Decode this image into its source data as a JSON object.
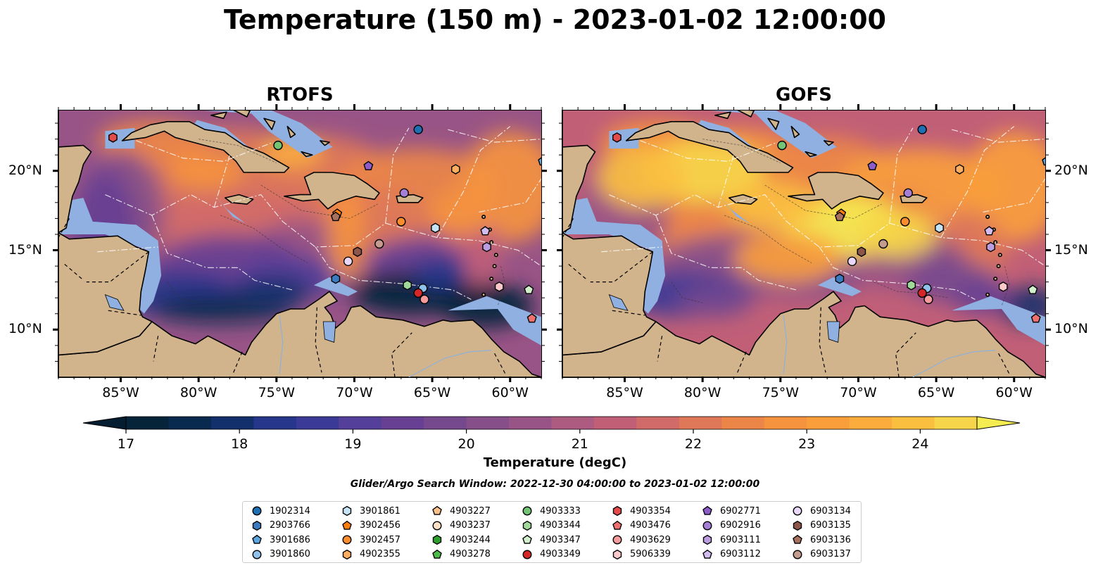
{
  "title": "Temperature (150 m) - 2023-01-02 12:00:00",
  "panels": [
    {
      "title": "RTOFS",
      "warmth": 0
    },
    {
      "title": "GOFS",
      "warmth": 1
    }
  ],
  "x_ticks": [
    "85°W",
    "80°W",
    "75°W",
    "70°W",
    "65°W",
    "60°W"
  ],
  "y_ticks": [
    "20°N",
    "15°N",
    "10°N"
  ],
  "colorbar": {
    "label": "Temperature (degC)",
    "min": 17,
    "max": 24.5,
    "tick_labels": [
      "17",
      "18",
      "19",
      "20",
      "21",
      "22",
      "23",
      "24"
    ],
    "extend": "both",
    "colors": [
      "#05243a",
      "#092a4f",
      "#14306c",
      "#26368a",
      "#3b3a96",
      "#543f9a",
      "#673f93",
      "#76498f",
      "#864f8a",
      "#985486",
      "#ad5b80",
      "#c15f77",
      "#d16b69",
      "#de7858",
      "#eb8548",
      "#f5933f",
      "#fa9e3c",
      "#fbac3d",
      "#fbbf40",
      "#f6d54a"
    ],
    "under_color": "#041d30",
    "over_color": "#f5ec51"
  },
  "search_window": "Glider/Argo Search Window: 2022-12-30 04:00:00 to 2023-01-02 12:00:00",
  "legend": [
    {
      "label": "1902314",
      "color": "#1f6fb4",
      "marker": "circle"
    },
    {
      "label": "2903766",
      "color": "#3b7bc0",
      "marker": "hexagon"
    },
    {
      "label": "3901686",
      "color": "#59a6e1",
      "marker": "pentagon"
    },
    {
      "label": "3901860",
      "color": "#8fc1ea",
      "marker": "circle"
    },
    {
      "label": "3901861",
      "color": "#c5e4f6",
      "marker": "hexagon"
    },
    {
      "label": "3902456",
      "color": "#ff7f0e",
      "marker": "pentagon"
    },
    {
      "label": "3902457",
      "color": "#fd8d2c",
      "marker": "circle"
    },
    {
      "label": "4902355",
      "color": "#fdae61",
      "marker": "hexagon"
    },
    {
      "label": "4903227",
      "color": "#fdc08a",
      "marker": "pentagon"
    },
    {
      "label": "4903237",
      "color": "#fde0c5",
      "marker": "circle"
    },
    {
      "label": "4903244",
      "color": "#2ca02c",
      "marker": "hexagon"
    },
    {
      "label": "4903278",
      "color": "#4cbb47",
      "marker": "pentagon"
    },
    {
      "label": "4903333",
      "color": "#74c476",
      "marker": "circle"
    },
    {
      "label": "4903344",
      "color": "#a1d99b",
      "marker": "hexagon"
    },
    {
      "label": "4903347",
      "color": "#d2f0cc",
      "marker": "pentagon"
    },
    {
      "label": "4903349",
      "color": "#d62728",
      "marker": "circle"
    },
    {
      "label": "4903354",
      "color": "#e34a4a",
      "marker": "hexagon"
    },
    {
      "label": "4903476",
      "color": "#f07070",
      "marker": "pentagon"
    },
    {
      "label": "4903629",
      "color": "#f59b9b",
      "marker": "circle"
    },
    {
      "label": "5906339",
      "color": "#fbc9c9",
      "marker": "hexagon"
    },
    {
      "label": "6902771",
      "color": "#8e5cc8",
      "marker": "pentagon"
    },
    {
      "label": "6902916",
      "color": "#a57ed6",
      "marker": "circle"
    },
    {
      "label": "6903111",
      "color": "#bc9ee0",
      "marker": "hexagon"
    },
    {
      "label": "6903112",
      "color": "#d3bdf0",
      "marker": "pentagon"
    },
    {
      "label": "6903134",
      "color": "#ead8fa",
      "marker": "circle"
    },
    {
      "label": "6903135",
      "color": "#8c564b",
      "marker": "hexagon"
    },
    {
      "label": "6903136",
      "color": "#a8705f",
      "marker": "pentagon"
    },
    {
      "label": "6903137",
      "color": "#c49c8f",
      "marker": "circle"
    }
  ],
  "floats": [
    {
      "id": "4903354",
      "lon": -85.5,
      "lat": 22.1
    },
    {
      "id": "1902314",
      "lon": -65.9,
      "lat": 22.6
    },
    {
      "id": "4903333",
      "lon": -74.9,
      "lat": 21.6
    },
    {
      "id": "6902771",
      "lon": -69.1,
      "lat": 20.3
    },
    {
      "id": "4902355",
      "lon": -63.5,
      "lat": 20.1
    },
    {
      "id": "6902916",
      "lon": -66.8,
      "lat": 18.6
    },
    {
      "id": "3902456",
      "lon": -71.1,
      "lat": 17.3
    },
    {
      "id": "6903136",
      "lon": -71.2,
      "lat": 17.1
    },
    {
      "id": "3902457",
      "lon": -67.0,
      "lat": 16.8
    },
    {
      "id": "3901861",
      "lon": -64.8,
      "lat": 16.4
    },
    {
      "id": "6903112",
      "lon": -61.6,
      "lat": 16.2
    },
    {
      "id": "6903111",
      "lon": -61.5,
      "lat": 15.2
    },
    {
      "id": "6903137",
      "lon": -68.4,
      "lat": 15.4
    },
    {
      "id": "6903135",
      "lon": -69.8,
      "lat": 14.9
    },
    {
      "id": "6903134",
      "lon": -70.4,
      "lat": 14.3
    },
    {
      "id": "2903766",
      "lon": -71.2,
      "lat": 13.2
    },
    {
      "id": "4903344",
      "lon": -66.6,
      "lat": 12.8
    },
    {
      "id": "3901860",
      "lon": -65.6,
      "lat": 12.6
    },
    {
      "id": "4903349",
      "lon": -65.9,
      "lat": 12.3
    },
    {
      "id": "4903629",
      "lon": -65.5,
      "lat": 11.9
    },
    {
      "id": "5906339",
      "lon": -60.7,
      "lat": 12.7
    },
    {
      "id": "4903347",
      "lon": -58.8,
      "lat": 12.5
    },
    {
      "id": "4903476",
      "lon": -58.6,
      "lat": 10.7
    },
    {
      "id": "3901686",
      "lon": -57.9,
      "lat": 20.6
    }
  ]
}
